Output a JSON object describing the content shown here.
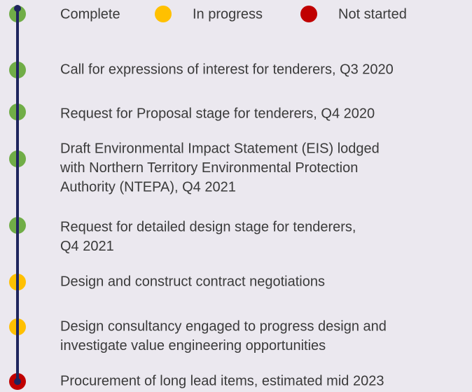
{
  "legend": [
    {
      "label": "Complete",
      "color": "#70ad47"
    },
    {
      "label": "In progress",
      "color": "#ffc000"
    },
    {
      "label": "Not started",
      "color": "#c00000"
    }
  ],
  "line_color": "#1f255e",
  "milestones": [
    {
      "lines": [
        "Call for expressions of interest for tenderers, Q3 2020"
      ],
      "color": "#70ad47"
    },
    {
      "lines": [
        "Request for Proposal stage for tenderers, Q4 2020"
      ],
      "color": "#70ad47"
    },
    {
      "lines": [
        "Draft Environmental Impact Statement (EIS) lodged",
        "with Northern Territory Environmental Protection",
        "Authority (NTEPA), Q4 2021"
      ],
      "color": "#70ad47"
    },
    {
      "lines": [
        "Request for detailed design stage for tenderers,",
        "Q4 2021"
      ],
      "color": "#70ad47"
    },
    {
      "lines": [
        "Design and construct contract negotiations"
      ],
      "color": "#ffc000"
    },
    {
      "lines": [
        "Design consultancy engaged to progress design and",
        "investigate value engineering opportunities"
      ],
      "color": "#ffc000"
    },
    {
      "lines": [
        "Procurement of long lead items, estimated mid 2023"
      ],
      "color": "#c00000"
    }
  ]
}
